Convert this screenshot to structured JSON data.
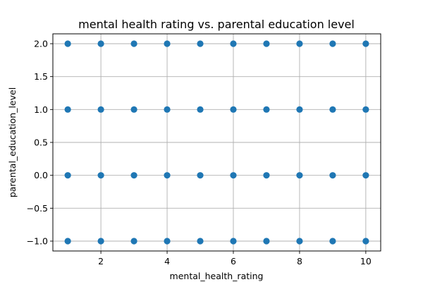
{
  "chart_data": {
    "type": "scatter",
    "title": "mental health rating vs. parental education level",
    "xlabel": "mental_health_rating",
    "ylabel": "parental_education_level",
    "xlim": [
      0.55,
      10.45
    ],
    "ylim": [
      -1.15,
      2.15
    ],
    "xticks": [
      2,
      4,
      6,
      8,
      10
    ],
    "yticks": [
      -1.0,
      -0.5,
      0.0,
      0.5,
      1.0,
      1.5,
      2.0
    ],
    "ytick_labels": [
      "−1.0",
      "−0.5",
      "0.0",
      "0.5",
      "1.0",
      "1.5",
      "2.0"
    ],
    "grid": true,
    "point_color": "#1f77b4",
    "series": [
      {
        "x": [
          1,
          2,
          3,
          4,
          5,
          6,
          7,
          8,
          9,
          10,
          1,
          2,
          3,
          4,
          5,
          6,
          7,
          8,
          9,
          10,
          1,
          2,
          3,
          4,
          5,
          6,
          7,
          8,
          9,
          10,
          1,
          2,
          3,
          4,
          5,
          6,
          7,
          8,
          9,
          10
        ],
        "y": [
          2,
          2,
          2,
          2,
          2,
          2,
          2,
          2,
          2,
          2,
          1,
          1,
          1,
          1,
          1,
          1,
          1,
          1,
          1,
          1,
          0,
          0,
          0,
          0,
          0,
          0,
          0,
          0,
          0,
          0,
          -1,
          -1,
          -1,
          -1,
          -1,
          -1,
          -1,
          -1,
          -1,
          -1
        ]
      }
    ]
  }
}
